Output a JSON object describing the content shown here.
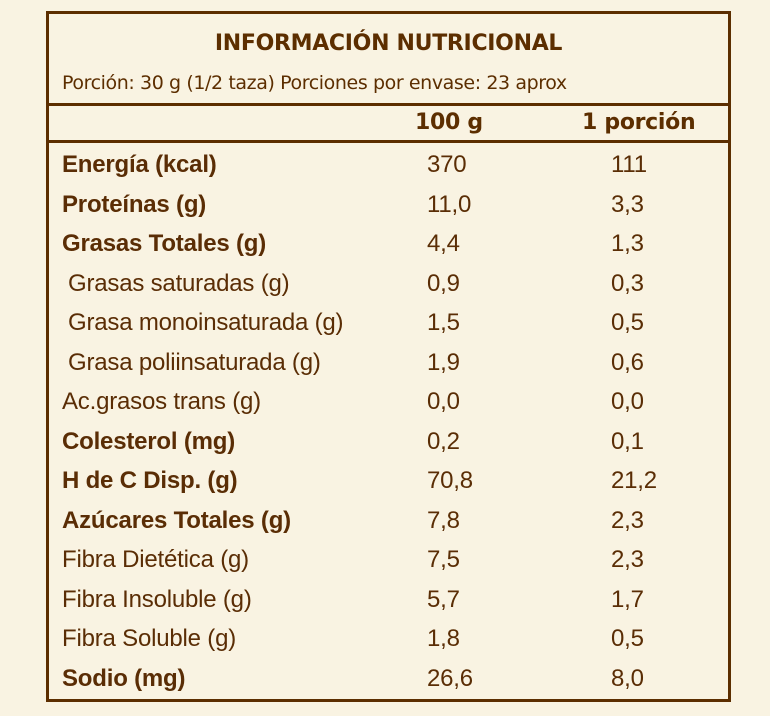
{
  "label": {
    "title": "INFORMACIÓN NUTRICIONAL",
    "serving": "Porción: 30 g (1/2 taza) Porciones por envase: 23 aprox",
    "columns": [
      "100 g",
      "1 porción"
    ],
    "rows": [
      {
        "name": "Energía (kcal)",
        "per100g": "370",
        "perServing": "111",
        "bold": true,
        "indent": false
      },
      {
        "name": "Proteínas (g)",
        "per100g": "11,0",
        "perServing": "3,3",
        "bold": true,
        "indent": false
      },
      {
        "name": "Grasas Totales (g)",
        "per100g": "4,4",
        "perServing": "1,3",
        "bold": true,
        "indent": false
      },
      {
        "name": "Grasas saturadas (g)",
        "per100g": "0,9",
        "perServing": "0,3",
        "bold": false,
        "indent": true
      },
      {
        "name": "Grasa monoinsaturada (g)",
        "per100g": "1,5",
        "perServing": "0,5",
        "bold": false,
        "indent": true
      },
      {
        "name": "Grasa poliinsaturada (g)",
        "per100g": "1,9",
        "perServing": "0,6",
        "bold": false,
        "indent": true
      },
      {
        "name": "Ac.grasos trans (g)",
        "per100g": "0,0",
        "perServing": "0,0",
        "bold": false,
        "indent": false
      },
      {
        "name": "Colesterol (mg)",
        "per100g": "0,2",
        "perServing": "0,1",
        "bold": true,
        "indent": false
      },
      {
        "name": "H de C Disp. (g)",
        "per100g": "70,8",
        "perServing": "21,2",
        "bold": true,
        "indent": false
      },
      {
        "name": "Azúcares Totales (g)",
        "per100g": "7,8",
        "perServing": "2,3",
        "bold": true,
        "indent": false
      },
      {
        "name": "Fibra Dietética (g)",
        "per100g": "7,5",
        "perServing": "2,3",
        "bold": false,
        "indent": false
      },
      {
        "name": "Fibra Insoluble (g)",
        "per100g": "5,7",
        "perServing": "1,7",
        "bold": false,
        "indent": false
      },
      {
        "name": "Fibra Soluble (g)",
        "per100g": "1,8",
        "perServing": "0,5",
        "bold": false,
        "indent": false
      },
      {
        "name": "Sodio (mg)",
        "per100g": "26,6",
        "perServing": "8,0",
        "bold": true,
        "indent": false
      }
    ]
  },
  "colors": {
    "background": "#f9f3e2",
    "ink": "#5c2e00"
  }
}
